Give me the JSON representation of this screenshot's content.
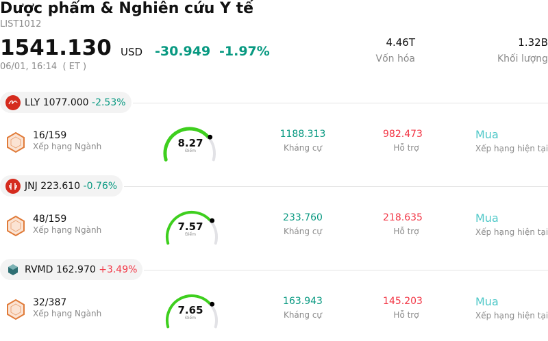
{
  "header": {
    "title": "Dược phẩm & Nghiên cứu Y tế",
    "code": "LIST1012",
    "price": "1541.130",
    "currency": "USD",
    "change": "-30.949",
    "change_pct": "-1.97%",
    "time": "06/01, 16:14  ( ET )"
  },
  "stats": [
    {
      "value": "4.46T",
      "label": "Vốn hóa"
    },
    {
      "value": "1.32B",
      "label": "Khối lượng"
    }
  ],
  "stocks": [
    {
      "ticker": "LLY",
      "price": "1077.000",
      "change": "-2.53%",
      "rank": "16/159",
      "rank_label": "Xếp hạng Ngành",
      "score": "8.27",
      "score_label": "Điểm",
      "resistance": "1188.313",
      "resistance_label": "Kháng cự",
      "support": "982.473",
      "support_label": "Hỗ trợ",
      "rating": "Mua",
      "rating_label": "Xếp hạng hiện tại"
    },
    {
      "ticker": "JNJ",
      "price": "223.610",
      "change": "-0.76%",
      "rank": "48/159",
      "rank_label": "Xếp hạng Ngành",
      "score": "7.57",
      "score_label": "Điểm",
      "resistance": "233.760",
      "resistance_label": "Kháng cự",
      "support": "218.635",
      "support_label": "Hỗ trợ",
      "rating": "Mua",
      "rating_label": "Xếp hạng hiện tại"
    },
    {
      "ticker": "RVMD",
      "price": "162.970",
      "change": "+3.49%",
      "rank": "32/387",
      "rank_label": "Xếp hạng Ngành",
      "score": "7.65",
      "score_label": "Điểm",
      "resistance": "163.943",
      "resistance_label": "Kháng cự",
      "support": "145.203",
      "support_label": "Hỗ trợ",
      "rating": "Mua",
      "rating_label": "Xếp hạng hiện tại"
    }
  ]
}
